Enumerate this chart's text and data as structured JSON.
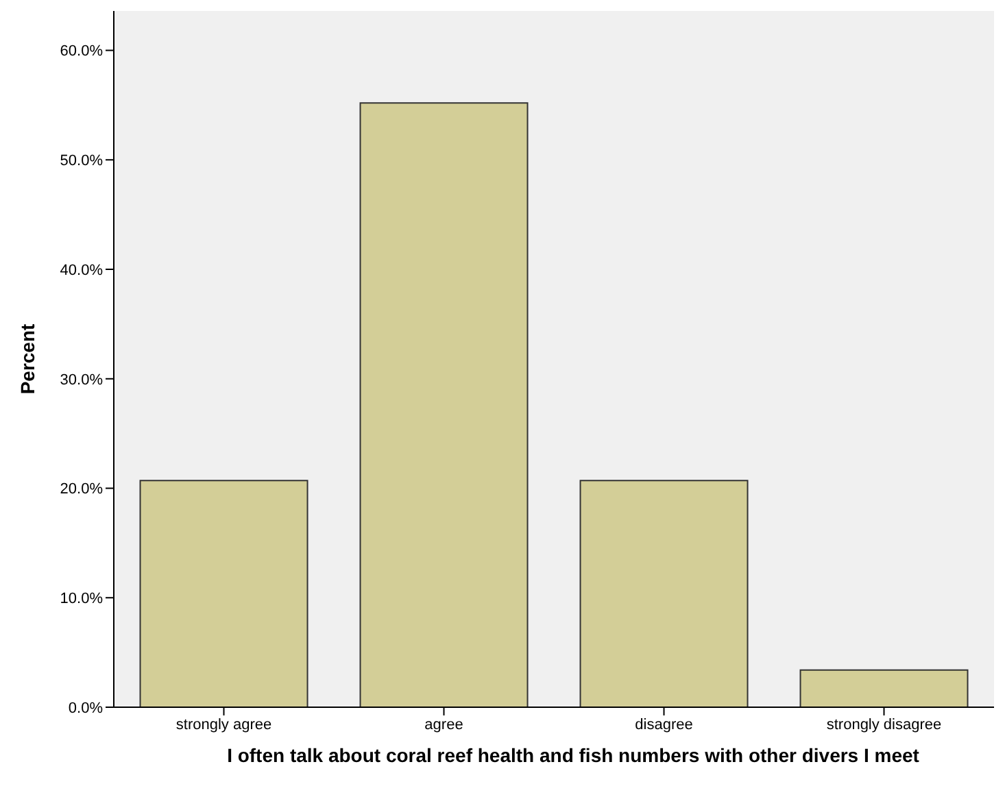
{
  "chart_data": {
    "type": "bar",
    "xlabel": "I often talk about coral reef health and fish numbers with other divers I meet",
    "ylabel": "Percent",
    "categories": [
      "strongly agree",
      "agree",
      "disagree",
      "strongly disagree"
    ],
    "values": [
      20.7,
      55.2,
      20.7,
      3.4
    ],
    "color": "#d3ce97",
    "ylim": [
      0,
      63.6
    ],
    "yticks": [
      {
        "value": 0,
        "label": "0.0%"
      },
      {
        "value": 10,
        "label": "10.0%"
      },
      {
        "value": 20,
        "label": "20.0%"
      },
      {
        "value": 30,
        "label": "30.0%"
      },
      {
        "value": 40,
        "label": "40.0%"
      },
      {
        "value": 50,
        "label": "50.0%"
      },
      {
        "value": 60,
        "label": "60.0%"
      }
    ],
    "grid": false,
    "legend": false
  }
}
